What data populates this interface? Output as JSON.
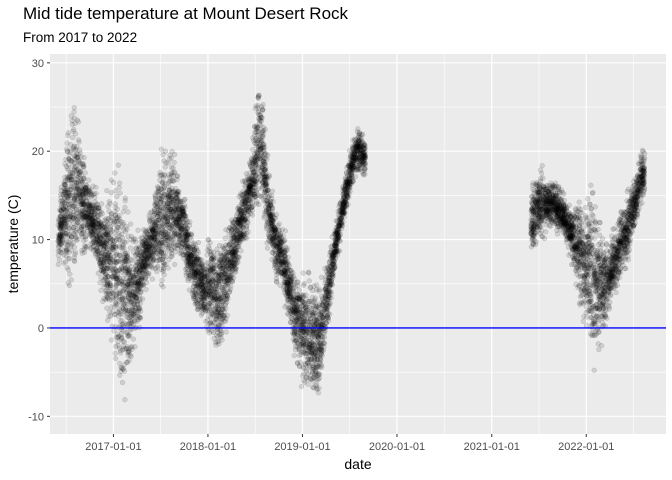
{
  "chart_data": {
    "type": "scatter",
    "title": "Mid tide temperature at Mount Desert Rock",
    "subtitle": "From 2017 to 2022",
    "xlabel": "date",
    "ylabel": "temperature (C)",
    "xlim": [
      "2016-05-01",
      "2022-11-05"
    ],
    "ylim": [
      -12,
      31
    ],
    "x_ticks": [
      "2017-01-01",
      "2018-01-01",
      "2019-01-01",
      "2020-01-01",
      "2021-01-01",
      "2022-01-01"
    ],
    "y_ticks": [
      -10,
      0,
      10,
      20,
      30
    ],
    "hline": {
      "y": 0,
      "color": "#0000ff"
    },
    "grid": true,
    "panel_background": "#ebebeb",
    "point_color": "#000000",
    "point_alpha": 0.12,
    "series": [
      {
        "x": [
          "2016-06-01",
          "2016-06-15",
          "2016-07-01",
          "2016-07-15",
          "2016-08-01",
          "2016-08-15",
          "2016-09-01",
          "2016-09-15",
          "2016-10-01",
          "2016-10-15",
          "2016-11-01",
          "2016-11-15",
          "2016-12-01",
          "2016-12-15",
          "2017-01-01",
          "2017-01-15",
          "2017-02-01",
          "2017-02-15",
          "2017-03-01",
          "2017-03-15",
          "2017-04-01",
          "2017-04-15",
          "2017-05-01",
          "2017-05-15",
          "2017-06-01",
          "2017-06-15",
          "2017-07-01",
          "2017-07-15",
          "2017-08-01",
          "2017-08-15",
          "2017-09-01",
          "2017-09-15",
          "2017-10-01",
          "2017-10-15",
          "2017-11-01",
          "2017-11-15",
          "2017-12-01",
          "2017-12-15",
          "2018-01-01",
          "2018-01-15",
          "2018-02-01",
          "2018-02-15",
          "2018-03-01",
          "2018-03-15",
          "2018-04-01",
          "2018-04-15",
          "2018-05-01",
          "2018-05-15",
          "2018-06-01",
          "2018-06-15",
          "2018-07-01",
          "2018-07-15",
          "2018-08-01",
          "2018-08-15",
          "2018-09-01",
          "2018-09-15",
          "2018-10-01",
          "2018-10-15",
          "2018-11-01",
          "2018-11-15",
          "2018-12-01",
          "2018-12-15",
          "2019-01-01",
          "2019-01-15",
          "2019-02-01",
          "2019-02-15",
          "2019-03-01",
          "2019-03-15",
          "2019-04-01",
          "2019-04-15",
          "2019-05-01",
          "2019-05-15",
          "2019-06-01",
          "2019-06-15",
          "2019-07-01",
          "2019-07-15",
          "2019-08-01",
          "2019-08-15",
          "2019-09-01"
        ],
        "y": [
          10,
          12,
          13.5,
          14,
          15,
          16,
          14,
          13.5,
          13,
          12,
          11,
          9.5,
          8,
          7.5,
          7,
          6,
          5,
          4,
          3.5,
          4,
          5,
          6,
          8,
          9,
          10,
          11,
          12,
          12.5,
          13,
          13.5,
          13,
          12,
          11,
          9,
          7,
          6,
          5.5,
          5,
          4.5,
          4,
          3.5,
          4,
          5,
          6,
          8,
          9.5,
          11,
          12.5,
          14,
          16,
          18,
          21,
          20,
          15,
          12,
          10,
          9,
          8,
          6,
          4,
          2,
          0.5,
          0,
          -1,
          -1,
          -1.5,
          -2,
          0,
          3,
          5,
          8,
          10,
          13,
          15,
          17,
          19,
          20,
          20,
          19
        ],
        "spread": [
          2,
          3,
          5,
          7,
          7,
          6,
          5,
          4,
          3,
          3,
          3,
          4,
          5,
          6,
          8,
          9,
          9,
          8,
          7,
          6,
          5,
          4,
          3,
          3,
          3,
          4,
          6,
          6,
          5,
          5,
          4,
          3,
          3,
          3,
          3,
          3,
          3,
          3,
          4,
          5,
          5,
          5,
          5,
          4,
          3,
          3,
          3,
          3,
          3,
          3,
          4,
          5,
          5,
          4,
          3,
          3,
          3,
          3,
          3,
          3,
          4,
          4,
          5,
          5,
          5,
          5,
          5,
          4,
          3,
          3,
          2,
          2,
          2,
          2,
          2,
          2,
          2,
          2,
          1.5
        ]
      },
      {
        "x": [
          "2021-06-01",
          "2021-06-15",
          "2021-07-01",
          "2021-07-15",
          "2021-08-01",
          "2021-08-15",
          "2021-09-01",
          "2021-09-15",
          "2021-10-01",
          "2021-10-15",
          "2021-11-01",
          "2021-11-15",
          "2021-12-01",
          "2021-12-15",
          "2022-01-01",
          "2022-01-15",
          "2022-02-01",
          "2022-02-15",
          "2022-03-01",
          "2022-03-15",
          "2022-04-01",
          "2022-04-15",
          "2022-05-01",
          "2022-05-15",
          "2022-06-01",
          "2022-06-15",
          "2022-07-01",
          "2022-07-15",
          "2022-08-01",
          "2022-08-15"
        ],
        "y": [
          12,
          13,
          14,
          14,
          14,
          14,
          14,
          13.5,
          13,
          12,
          11,
          10,
          9,
          8,
          7,
          6,
          5.5,
          5,
          4.5,
          5,
          6,
          7,
          8,
          9.5,
          10.5,
          12,
          13.5,
          15,
          17,
          18
        ],
        "spread": [
          3,
          3,
          3,
          3,
          2,
          2,
          2,
          2,
          2,
          2,
          2,
          3,
          4,
          5,
          6,
          7,
          7,
          6,
          5,
          4,
          3,
          3,
          3,
          3,
          3,
          3,
          2,
          2,
          2,
          2
        ]
      }
    ]
  }
}
